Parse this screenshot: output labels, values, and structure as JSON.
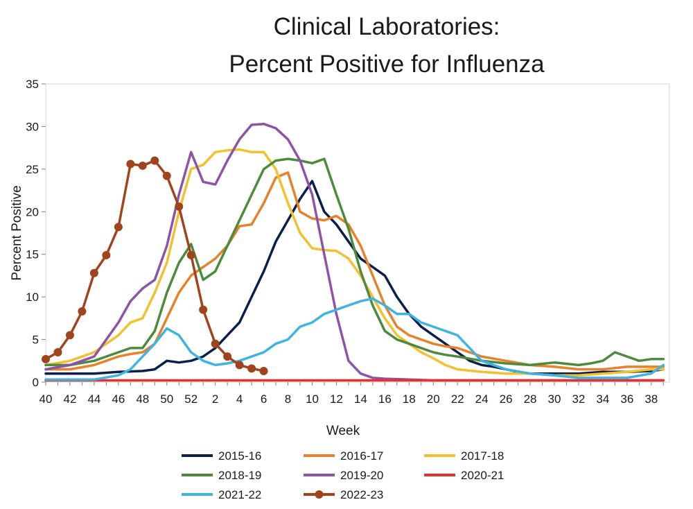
{
  "chart_data": {
    "type": "line",
    "title_line1": "Clinical Laboratories:",
    "title_line2": "Percent Positive for Influenza",
    "xlabel": "Week",
    "ylabel": "Percent Positive",
    "ylim": [
      0,
      35
    ],
    "yticks": [
      0,
      5,
      10,
      15,
      20,
      25,
      30,
      35
    ],
    "x_tick_labels": [
      "40",
      "42",
      "44",
      "46",
      "48",
      "50",
      "52",
      "2",
      "4",
      "6",
      "8",
      "10",
      "12",
      "14",
      "16",
      "18",
      "20",
      "22",
      "24",
      "26",
      "28",
      "30",
      "32",
      "34",
      "36",
      "38"
    ],
    "x_tick_positions": [
      40,
      42,
      44,
      46,
      48,
      50,
      52,
      54,
      56,
      58,
      60,
      62,
      64,
      66,
      68,
      70,
      72,
      74,
      76,
      78,
      80,
      82,
      84,
      86,
      88,
      90
    ],
    "xlim": [
      40,
      91.5
    ],
    "grid": false,
    "legend_position": "bottom",
    "series": [
      {
        "name": "2015-16",
        "color": "#0b1f4d",
        "marker": false,
        "x": [
          40,
          42,
          44,
          46,
          48,
          49,
          50,
          51,
          52,
          53,
          54,
          55,
          56,
          57,
          58,
          59,
          60,
          61,
          62,
          63,
          64,
          65,
          66,
          67,
          68,
          69,
          70,
          71,
          72,
          73,
          74,
          75,
          76,
          77,
          78,
          79,
          80,
          82,
          84,
          86,
          88,
          90,
          91
        ],
        "values": [
          1.0,
          1.0,
          1.0,
          1.2,
          1.3,
          1.5,
          2.5,
          2.3,
          2.5,
          3.0,
          4.0,
          5.5,
          7.0,
          10.0,
          13.0,
          16.5,
          19.0,
          21.5,
          23.6,
          20.0,
          18.5,
          16.5,
          14.5,
          13.5,
          12.5,
          10.0,
          8.0,
          6.5,
          5.5,
          4.5,
          3.5,
          2.5,
          2.0,
          1.8,
          1.5,
          1.2,
          1.0,
          1.0,
          1.0,
          1.2,
          1.2,
          1.3,
          1.5
        ]
      },
      {
        "name": "2016-17",
        "color": "#e7812a",
        "marker": false,
        "x": [
          40,
          42,
          44,
          45,
          46,
          47,
          48,
          49,
          50,
          51,
          52,
          53,
          54,
          55,
          56,
          57,
          58,
          59,
          60,
          61,
          62,
          63,
          64,
          65,
          66,
          67,
          68,
          69,
          70,
          71,
          72,
          73,
          74,
          75,
          76,
          78,
          80,
          82,
          84,
          86,
          88,
          90,
          91
        ],
        "values": [
          1.5,
          1.5,
          2.0,
          2.5,
          3.0,
          3.3,
          3.5,
          4.5,
          7.5,
          10.5,
          12.5,
          13.5,
          14.5,
          16.0,
          18.3,
          18.5,
          21.0,
          24.0,
          24.6,
          20.0,
          19.2,
          19.0,
          19.5,
          18.5,
          16.0,
          12.5,
          9.0,
          6.5,
          5.5,
          5.0,
          4.5,
          4.2,
          4.0,
          3.5,
          3.0,
          2.5,
          2.0,
          1.8,
          1.5,
          1.5,
          1.8,
          1.8,
          1.8
        ]
      },
      {
        "name": "2017-18",
        "color": "#f2c12e",
        "marker": false,
        "x": [
          40,
          42,
          44,
          45,
          46,
          47,
          48,
          49,
          50,
          51,
          52,
          53,
          54,
          55,
          56,
          57,
          58,
          59,
          60,
          61,
          62,
          63,
          64,
          65,
          66,
          67,
          68,
          69,
          70,
          71,
          72,
          73,
          74,
          76,
          78,
          80,
          82,
          84,
          86,
          88,
          90,
          91
        ],
        "values": [
          2.0,
          2.5,
          3.5,
          4.5,
          5.5,
          7.0,
          7.5,
          10.5,
          14.0,
          20.0,
          25.0,
          25.5,
          27.0,
          27.2,
          27.3,
          27.0,
          27.0,
          25.0,
          21.0,
          17.5,
          15.7,
          15.5,
          15.4,
          14.5,
          12.5,
          10.0,
          7.5,
          5.5,
          4.5,
          3.5,
          2.8,
          2.0,
          1.5,
          1.2,
          1.0,
          1.0,
          0.8,
          0.8,
          1.0,
          1.2,
          1.5,
          1.5
        ]
      },
      {
        "name": "2018-19",
        "color": "#4b8b3b",
        "marker": false,
        "x": [
          40,
          42,
          44,
          45,
          46,
          47,
          48,
          49,
          50,
          51,
          52,
          53,
          54,
          55,
          56,
          57,
          58,
          59,
          60,
          61,
          62,
          63,
          64,
          65,
          66,
          67,
          68,
          69,
          70,
          71,
          72,
          73,
          74,
          76,
          78,
          80,
          82,
          84,
          85,
          86,
          87,
          88,
          89,
          90,
          91
        ],
        "values": [
          2.0,
          2.0,
          2.5,
          3.0,
          3.5,
          4.0,
          4.0,
          6.0,
          10.5,
          14.0,
          16.2,
          12.0,
          13.0,
          16.0,
          19.0,
          22.0,
          25.0,
          26.0,
          26.2,
          26.0,
          25.7,
          26.2,
          22.0,
          18.0,
          13.0,
          9.0,
          6.0,
          5.0,
          4.5,
          4.0,
          3.5,
          3.2,
          3.0,
          2.5,
          2.2,
          2.0,
          2.3,
          2.0,
          2.2,
          2.5,
          3.5,
          3.0,
          2.5,
          2.7,
          2.7
        ]
      },
      {
        "name": "2019-20",
        "color": "#8e52a8",
        "marker": false,
        "x": [
          40,
          42,
          44,
          45,
          46,
          47,
          48,
          49,
          50,
          51,
          52,
          53,
          54,
          55,
          56,
          57,
          58,
          59,
          60,
          61,
          62,
          63,
          64,
          65,
          66,
          67,
          68,
          70,
          72,
          74,
          76,
          78,
          80,
          82,
          84,
          86,
          88,
          90,
          91
        ],
        "values": [
          1.5,
          2.0,
          3.0,
          5.0,
          7.0,
          9.5,
          11.0,
          12.0,
          16.0,
          22.0,
          27.0,
          23.5,
          23.2,
          26.0,
          28.5,
          30.2,
          30.3,
          29.8,
          28.5,
          26.0,
          22.0,
          15.0,
          8.0,
          2.5,
          1.0,
          0.5,
          0.4,
          0.3,
          0.2,
          0.2,
          0.2,
          0.2,
          0.2,
          0.2,
          0.2,
          0.2,
          0.2,
          0.2,
          0.2
        ]
      },
      {
        "name": "2020-21",
        "color": "#e0332e",
        "marker": false,
        "x": [
          40,
          45,
          50,
          55,
          60,
          65,
          70,
          75,
          80,
          85,
          90,
          91
        ],
        "values": [
          0.2,
          0.2,
          0.2,
          0.2,
          0.2,
          0.2,
          0.2,
          0.2,
          0.2,
          0.2,
          0.2,
          0.2
        ]
      },
      {
        "name": "2021-22",
        "color": "#3fb4e0",
        "marker": false,
        "x": [
          40,
          42,
          44,
          46,
          47,
          48,
          49,
          50,
          51,
          52,
          53,
          54,
          55,
          56,
          57,
          58,
          59,
          60,
          61,
          62,
          63,
          64,
          65,
          66,
          67,
          68,
          69,
          70,
          71,
          72,
          73,
          74,
          75,
          76,
          78,
          80,
          82,
          84,
          86,
          88,
          90,
          91
        ],
        "values": [
          0.3,
          0.3,
          0.3,
          0.8,
          1.5,
          3.0,
          4.5,
          6.3,
          5.5,
          3.5,
          2.5,
          2.0,
          2.2,
          2.5,
          3.0,
          3.5,
          4.5,
          5.0,
          6.5,
          7.0,
          8.0,
          8.5,
          9.0,
          9.5,
          9.8,
          9.0,
          8.0,
          8.0,
          7.0,
          6.5,
          6.0,
          5.5,
          4.0,
          2.5,
          1.5,
          1.0,
          0.8,
          0.5,
          0.5,
          0.5,
          1.0,
          2.0
        ]
      },
      {
        "name": "2022-23",
        "color": "#a0441e",
        "marker": true,
        "x": [
          40,
          41,
          42,
          43,
          44,
          45,
          46,
          47,
          48,
          49,
          50,
          51,
          52,
          53,
          54,
          55,
          56,
          57,
          58
        ],
        "values": [
          2.7,
          3.5,
          5.5,
          8.3,
          12.8,
          14.9,
          18.2,
          25.6,
          25.4,
          26.0,
          24.2,
          20.6,
          14.9,
          8.5,
          4.5,
          3.0,
          2.0,
          1.6,
          1.3
        ]
      }
    ]
  }
}
